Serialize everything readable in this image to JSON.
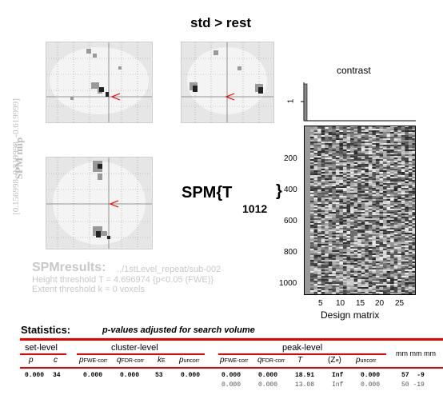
{
  "title": "std > rest",
  "mip": {
    "side_label": "SPM mip",
    "coords_label": "[0.156998, 0.819998, -0.619999]"
  },
  "spm_stat": {
    "main": "SPM{T",
    "df": "1012",
    "close": "}"
  },
  "contrast": {
    "title": "contrast",
    "axis_tick": "1"
  },
  "design_matrix": {
    "xlabel": "Design matrix",
    "x_ticks": [
      "5",
      "10",
      "15",
      "20",
      "25"
    ],
    "y_ticks": [
      "200",
      "400",
      "600",
      "800",
      "1000"
    ]
  },
  "results": {
    "header": "SPMresults:",
    "path": "../1stLevel_repeat/sub-002",
    "height_threshold": "Height threshold T = 4.696974  {p<0.05 (FWE)}",
    "extent_threshold": "Extent threshold k = 0 voxels"
  },
  "statistics": {
    "title": "Statistics:",
    "subtitle": "p-values adjusted for search volume",
    "groups": {
      "set_level": "set-level",
      "cluster_level": "cluster-level",
      "peak_level": "peak-level",
      "mm": "mm mm mm"
    },
    "columns": {
      "p": "p",
      "c": "c",
      "p_fwe": "p",
      "p_fwe_sub": "FWE-corr",
      "q_fdr": "q",
      "q_fdr_sub": "FDR-corr",
      "k": "k",
      "k_sub": "E",
      "p_unc": "p",
      "p_unc_sub": "uncorr",
      "pk_fwe": "p",
      "pk_fwe_sub": "FWE-corr",
      "pk_fdr": "q",
      "pk_fdr_sub": "FDR-corr",
      "t": "T",
      "z": "(Z",
      "z_sub": "≡",
      "z_close": ")",
      "pk_unc": "p",
      "pk_unc_sub": "uncorr"
    },
    "rows": [
      {
        "p": "0.000",
        "c": "34",
        "pfwe": "0.000",
        "qfdr": "0.000",
        "k": "53",
        "punc": "0.000",
        "pkfwe": "0.000",
        "pkfdr": "0.000",
        "t": "18.91",
        "z": "Inf",
        "pkunc": "0.000",
        "mm": "57  -9"
      },
      {
        "p": "",
        "c": "",
        "pfwe": "",
        "qfdr": "",
        "k": "",
        "punc": "",
        "pkfwe": "0.000",
        "pkfdr": "0.000",
        "t": "13.08",
        "z": "Inf",
        "pkunc": "0.000",
        "mm": "50 -19"
      }
    ]
  }
}
